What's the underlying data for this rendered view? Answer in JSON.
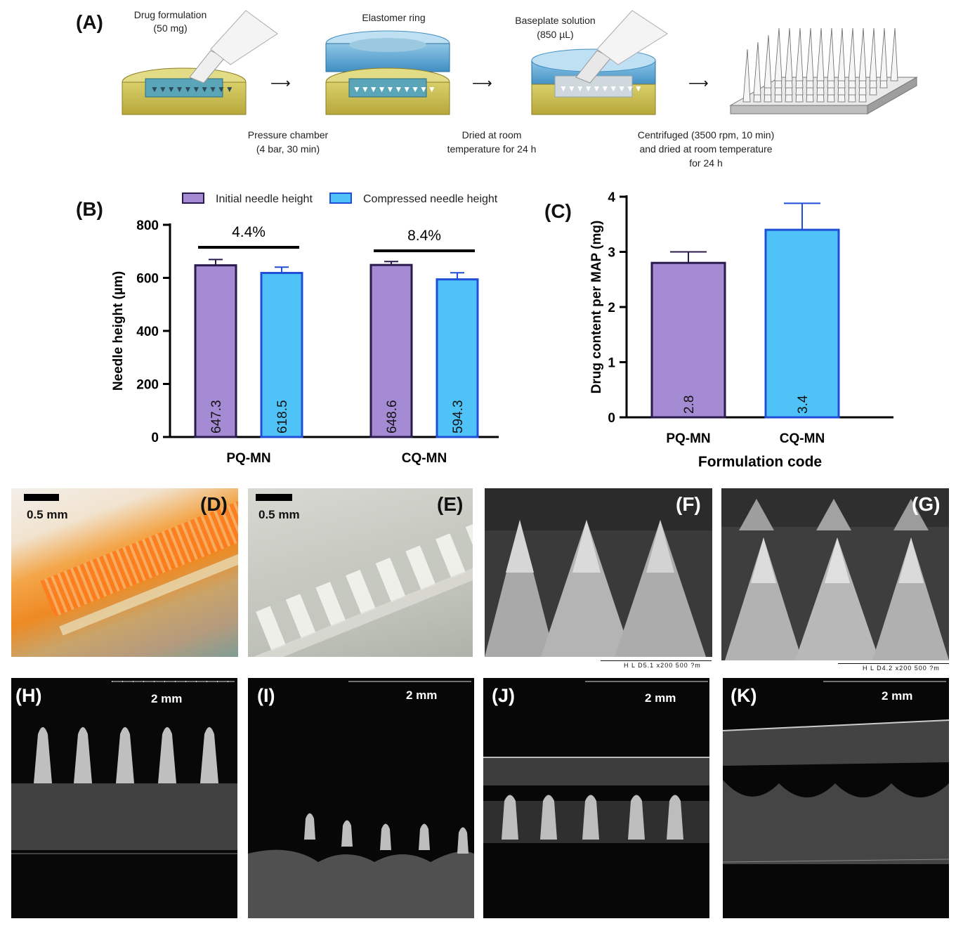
{
  "panel_a": {
    "letter": "(A)",
    "step1_title": "Drug formulation",
    "step1_amount": "(50 mg)",
    "step2_title": "Elastomer ring",
    "step3_title": "Baseplate solution",
    "step3_amount": "(850 µL)",
    "caption1_l1": "Pressure chamber",
    "caption1_l2": "(4 bar, 30 min)",
    "caption2_l1": "Dried at room",
    "caption2_l2": "temperature for 24 h",
    "caption3_l1": "Centrifuged (3500 rpm, 10 min)",
    "caption3_l2": "and dried at room temperature",
    "caption3_l3": "for 24 h"
  },
  "panel_letters": {
    "b": "(B)",
    "c": "(C)",
    "d": "(D)",
    "e": "(E)",
    "f": "(F)",
    "g": "(G)",
    "h": "(H)",
    "i": "(I)",
    "j": "(J)",
    "k": "(K)"
  },
  "scale_labels": {
    "d": "0.5 mm",
    "e": "0.5 mm",
    "h": "2 mm",
    "i": "2 mm",
    "j": "2 mm",
    "k": "2 mm"
  },
  "sem_captions": {
    "f": "H L    D5.1    x200       500 ?m",
    "g": "H L    D4.2    x200       500 ?m"
  },
  "colors": {
    "purple_fill": "#a58bd3",
    "purple_edge": "#2b1a4e",
    "blue_fill": "#4fc3f7",
    "blue_edge": "#1f4fd6"
  },
  "chart_data": [
    {
      "type": "bar",
      "panel": "B",
      "categories": [
        "PQ-MN",
        "CQ-MN"
      ],
      "series": [
        {
          "name": "Initial needle height",
          "values": [
            647.3,
            648.6
          ],
          "errors": [
            22,
            13
          ],
          "color": "#a58bd3"
        },
        {
          "name": "Compressed needle height",
          "values": [
            618.5,
            594.3
          ],
          "errors": [
            22,
            25
          ],
          "color": "#4fc3f7"
        }
      ],
      "data_labels": [
        [
          "647.3",
          "618.5"
        ],
        [
          "648.6",
          "594.3"
        ]
      ],
      "annotations": [
        "4.4%",
        "8.4%"
      ],
      "xlabel": "",
      "ylabel": "Needle height (µm)",
      "ylim": [
        0,
        800
      ],
      "yticks": [
        "0",
        "200",
        "400",
        "600",
        "800"
      ],
      "legend": "top"
    },
    {
      "type": "bar",
      "panel": "C",
      "categories": [
        "PQ-MN",
        "CQ-MN"
      ],
      "values": [
        2.8,
        3.4
      ],
      "errors": [
        0.2,
        0.48
      ],
      "data_labels": [
        "2.8",
        "3.4"
      ],
      "colors": [
        "#a58bd3",
        "#4fc3f7"
      ],
      "xlabel": "Formulation code",
      "ylabel": "Drug content per MAP (mg)",
      "ylim": [
        0,
        4
      ],
      "yticks": [
        "0",
        "1",
        "2",
        "3",
        "4"
      ]
    }
  ]
}
